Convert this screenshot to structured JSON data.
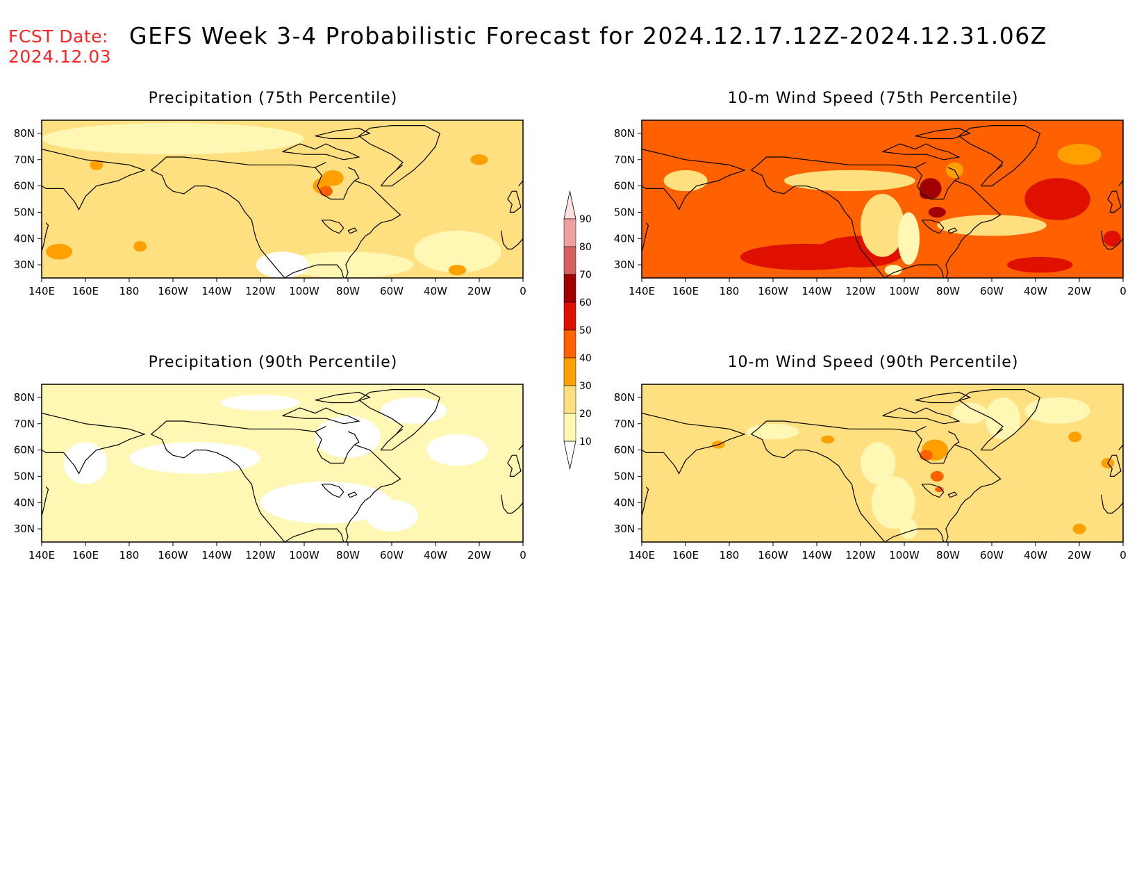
{
  "header": {
    "fcst_label": "FCST Date:",
    "fcst_date": "2024.12.03",
    "title": "GEFS Week 3-4 Probabilistic Forecast for 2024.12.17.12Z-2024.12.31.06Z"
  },
  "map_axes": {
    "lon_ticks": [
      "140E",
      "160E",
      "180",
      "160W",
      "140W",
      "120W",
      "100W",
      "80W",
      "60W",
      "40W",
      "20W",
      "0"
    ],
    "lat_ticks": [
      "80N",
      "70N",
      "60N",
      "50N",
      "40N",
      "30N"
    ]
  },
  "panels": [
    {
      "id": "precip75",
      "title": "Precipitation (75th Percentile)",
      "base_level": 20
    },
    {
      "id": "wind75",
      "title": "10-m Wind Speed (75th Percentile)",
      "base_level": 40
    },
    {
      "id": "precip90",
      "title": "Precipitation (90th Percentile)",
      "base_level": 10
    },
    {
      "id": "wind90",
      "title": "10-m Wind Speed (90th Percentile)",
      "base_level": 20
    }
  ],
  "colorbar": {
    "labels": [
      "90",
      "80",
      "70",
      "60",
      "50",
      "40",
      "30",
      "20",
      "10"
    ],
    "colors": {
      "below_10": "#ffffff",
      "10-20": "#fff7b3",
      "20-30": "#ffe080",
      "30-40": "#ffa000",
      "40-50": "#ff6000",
      "50-60": "#e01000",
      "60-70": "#a00000",
      "70-80": "#d46060",
      "80-90": "#f0a0a0",
      "above_90": "#ffe0e0"
    }
  }
}
